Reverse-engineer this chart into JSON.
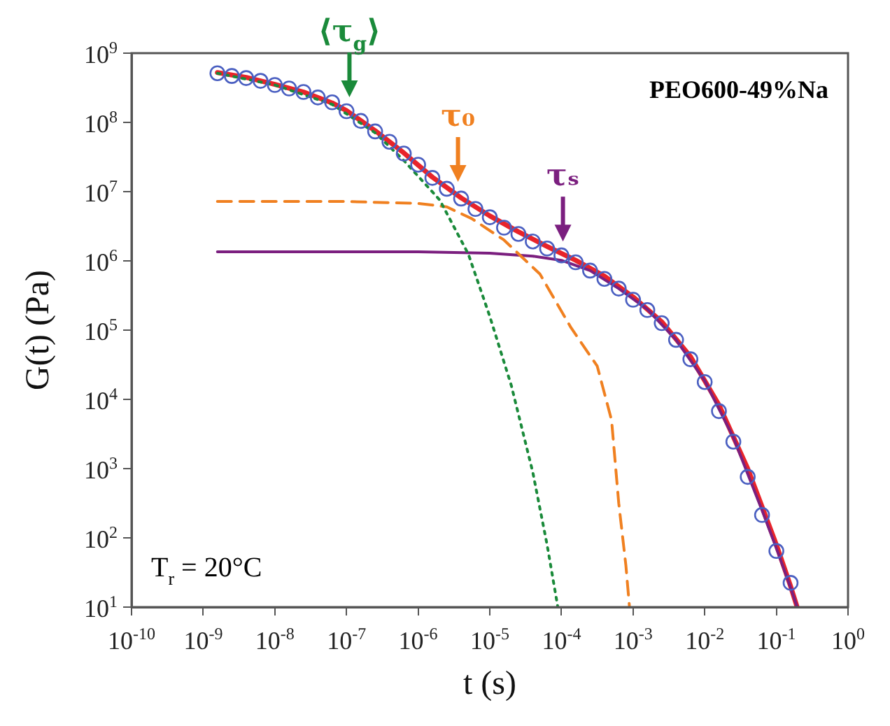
{
  "chart_data": {
    "type": "line",
    "xlabel": "t (s)",
    "ylabel": "G(t) (Pa)",
    "log": "xy",
    "grid": false,
    "legend": false,
    "xlim": [
      1e-10,
      1
    ],
    "ylim": [
      10,
      1000000000.0
    ],
    "xticks": [
      {
        "value": 1e-10,
        "label": "10$^{-10}$"
      },
      {
        "value": 1e-09,
        "label": "10$^{-9}$"
      },
      {
        "value": 1e-08,
        "label": "10$^{-8}$"
      },
      {
        "value": 1e-07,
        "label": "10$^{-7}$"
      },
      {
        "value": 1e-06,
        "label": "10$^{-6}$"
      },
      {
        "value": 1e-05,
        "label": "10$^{-5}$"
      },
      {
        "value": 0.0001,
        "label": "10$^{-4}$"
      },
      {
        "value": 0.001,
        "label": "10$^{-3}$"
      },
      {
        "value": 0.01,
        "label": "10$^{-2}$"
      },
      {
        "value": 0.1,
        "label": "10$^{-1}$"
      },
      {
        "value": 1,
        "label": "10$^{0}$"
      }
    ],
    "yticks": [
      {
        "value": 10,
        "label": "10$^{1}$"
      },
      {
        "value": 100,
        "label": "10$^{2}$"
      },
      {
        "value": 1000,
        "label": "10$^{3}$"
      },
      {
        "value": 10000,
        "label": "10$^{4}$"
      },
      {
        "value": 100000,
        "label": "10$^{5}$"
      },
      {
        "value": 1000000,
        "label": "10$^{6}$"
      },
      {
        "value": 10000000,
        "label": "10$^{7}$"
      },
      {
        "value": 100000000,
        "label": "10$^{8}$"
      },
      {
        "value": 1000000000,
        "label": "10$^{9}$"
      }
    ],
    "series": [
      {
        "type": "scatter",
        "marker": "circle",
        "color": "#4a5fc1",
        "x": [
          1.58e-09,
          2.51e-09,
          3.98e-09,
          6.31e-09,
          1e-08,
          1.58e-08,
          2.51e-08,
          3.98e-08,
          6.31e-08,
          1e-07,
          1.58e-07,
          2.51e-07,
          3.98e-07,
          6.31e-07,
          1e-06,
          1.58e-06,
          2.51e-06,
          3.98e-06,
          6.31e-06,
          1e-05,
          1.58e-05,
          2.51e-05,
          3.98e-05,
          6.31e-05,
          0.0001,
          0.000158,
          0.000251,
          0.000398,
          0.000631,
          0.001,
          0.00158,
          0.00251,
          0.00398,
          0.00631,
          0.01,
          0.0158,
          0.0251,
          0.0398,
          0.0631,
          0.1,
          0.158
        ],
        "values": [
          513000000.0,
          468000000.0,
          437000000.0,
          398000000.0,
          347000000.0,
          309000000.0,
          275000000.0,
          229000000.0,
          195000000.0,
          145000000.0,
          105000000.0,
          74100000.0,
          52500000.0,
          35500000.0,
          24500000.0,
          15800000.0,
          11000000.0,
          7940000.0,
          5620000.0,
          4270000.0,
          3020000.0,
          2450000.0,
          1910000.0,
          1510000.0,
          1200000.0,
          955000.0,
          724000.0,
          550000.0,
          398000.0,
          275000.0,
          195000.0,
          126000.0,
          72400.0,
          38000.0,
          17800.0,
          6760,
          2450,
          759,
          214,
          64.6,
          22.4
        ]
      },
      {
        "type": "line",
        "line_style": "dotted",
        "marker": "none",
        "color": "#1a8a3a",
        "x": [
          1.58e-09,
          1e-08,
          6.31e-08,
          2.51e-07,
          6.31e-07,
          2e-06,
          5.01e-06,
          1e-05,
          2e-05,
          3.98e-05,
          6.31e-05,
          8.91e-05
        ],
        "values": [
          513000000.0,
          347000000.0,
          182000000.0,
          70800000.0,
          28200000.0,
          7590000.0,
          1260000.0,
          158000.0,
          15800.0,
          891,
          79.4,
          10
        ]
      },
      {
        "type": "line",
        "line_style": "dashed",
        "marker": "none",
        "color": "#f08020",
        "x": [
          1.58e-09,
          1e-07,
          1e-06,
          2.51e-06,
          5.62e-06,
          1.58e-05,
          5.01e-05,
          0.000135,
          0.000316,
          0.000501,
          0.000631,
          0.000794,
          0.000891
        ],
        "values": [
          7200000.0,
          7200000.0,
          6760000.0,
          6030000.0,
          4070000.0,
          2000000.0,
          646000.0,
          110000.0,
          30200.0,
          5010,
          316,
          39.8,
          10
        ]
      },
      {
        "type": "line",
        "line_style": "solid",
        "marker": "none",
        "color": "#7b1f7f",
        "x": [
          1.58e-09,
          1e-06,
          1e-05,
          3.98e-05,
          0.0001,
          0.000251,
          0.000631,
          0.00158,
          0.00398,
          0.01,
          0.0251,
          0.0631,
          0.1,
          0.158,
          0.195
        ],
        "values": [
          1350000.0,
          1350000.0,
          1290000.0,
          1170000.0,
          1020000.0,
          724000.0,
          398000.0,
          200000.0,
          72400.0,
          18600.0,
          2820,
          251,
          70.8,
          19.1,
          10
        ]
      },
      {
        "type": "line",
        "line_style": "solid",
        "marker": "none",
        "color": "#e8242a",
        "x": [
          1.58e-09,
          3.98e-09,
          1e-08,
          2.51e-08,
          6.31e-08,
          1e-07,
          2.51e-07,
          6.31e-07,
          1.58e-06,
          3.98e-06,
          1e-05,
          2.51e-05,
          6.31e-05,
          0.000158,
          0.000398,
          0.001,
          0.00251,
          0.00631,
          0.0158,
          0.0398,
          0.0631,
          0.1,
          0.158,
          0.195
        ],
        "values": [
          525000000.0,
          447000000.0,
          355000000.0,
          275000000.0,
          191000000.0,
          148000000.0,
          75900000.0,
          36300000.0,
          16200000.0,
          8130000.0,
          4470000.0,
          2630000.0,
          1620000.0,
          1020000.0,
          603000.0,
          302000.0,
          132000.0,
          41700.0,
          8320,
          1000,
          282,
          79.4,
          20,
          10
        ]
      }
    ],
    "annotations": [
      {
        "text": "⟨τ$_{g}$⟩",
        "x": 1.1e-07,
        "y": 145000000.0
      },
      {
        "text": "τ₀",
        "x": 3.6e-06,
        "y": 8700000.0
      },
      {
        "text": "τₛ",
        "x": 0.000105,
        "y": 1200000.0
      },
      "PEO600-49%Na",
      "T$_{r}$ = 20°C"
    ]
  }
}
